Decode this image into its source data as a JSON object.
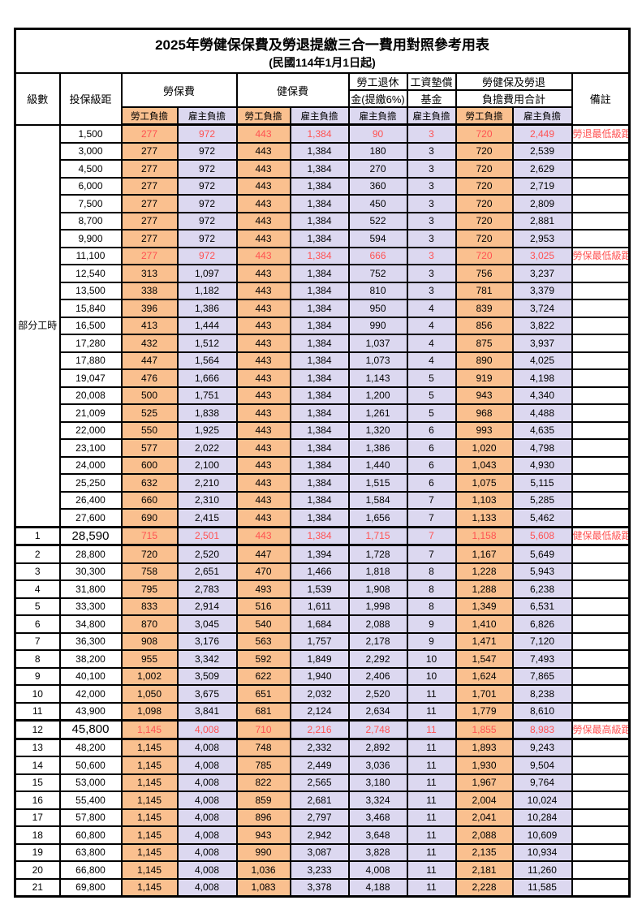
{
  "title": "2025年勞健保保費及勞退提繳三合一費用對照參考用表",
  "subtitle": "(民國114年1月1日起)",
  "colors": {
    "employee_bg": "#FAC08F",
    "employer_bg": "#DCD8F0",
    "highlight_red": "#FF5252",
    "border": "#000000"
  },
  "headers": {
    "level": "級數",
    "bracket": "投保級距",
    "labor_ins": "勞保費",
    "health_ins": "健保費",
    "pension_line1": "勞工退休",
    "pension_line2": "金(提繳6%)",
    "wage_fund_line1": "工資墊償",
    "wage_fund_line2": "基金",
    "total_line1": "勞健保及勞退",
    "total_line2": "負擔費用合計",
    "remark": "備註",
    "employee": "勞工負擔",
    "employer": "雇主負擔"
  },
  "group_label": "部分工時",
  "rows": [
    {
      "level": "",
      "bracket": "1,500",
      "labor_emp": "277",
      "labor_er": "972",
      "health_emp": "443",
      "health_er": "1,384",
      "pension": "90",
      "fund": "3",
      "total_emp": "720",
      "total_er": "2,449",
      "note": "勞退最低級距",
      "red": true,
      "big": false
    },
    {
      "level": "",
      "bracket": "3,000",
      "labor_emp": "277",
      "labor_er": "972",
      "health_emp": "443",
      "health_er": "1,384",
      "pension": "180",
      "fund": "3",
      "total_emp": "720",
      "total_er": "2,539",
      "note": "",
      "red": false,
      "big": false
    },
    {
      "level": "",
      "bracket": "4,500",
      "labor_emp": "277",
      "labor_er": "972",
      "health_emp": "443",
      "health_er": "1,384",
      "pension": "270",
      "fund": "3",
      "total_emp": "720",
      "total_er": "2,629",
      "note": "",
      "red": false,
      "big": false
    },
    {
      "level": "",
      "bracket": "6,000",
      "labor_emp": "277",
      "labor_er": "972",
      "health_emp": "443",
      "health_er": "1,384",
      "pension": "360",
      "fund": "3",
      "total_emp": "720",
      "total_er": "2,719",
      "note": "",
      "red": false,
      "big": false
    },
    {
      "level": "",
      "bracket": "7,500",
      "labor_emp": "277",
      "labor_er": "972",
      "health_emp": "443",
      "health_er": "1,384",
      "pension": "450",
      "fund": "3",
      "total_emp": "720",
      "total_er": "2,809",
      "note": "",
      "red": false,
      "big": false
    },
    {
      "level": "",
      "bracket": "8,700",
      "labor_emp": "277",
      "labor_er": "972",
      "health_emp": "443",
      "health_er": "1,384",
      "pension": "522",
      "fund": "3",
      "total_emp": "720",
      "total_er": "2,881",
      "note": "",
      "red": false,
      "big": false
    },
    {
      "level": "",
      "bracket": "9,900",
      "labor_emp": "277",
      "labor_er": "972",
      "health_emp": "443",
      "health_er": "1,384",
      "pension": "594",
      "fund": "3",
      "total_emp": "720",
      "total_er": "2,953",
      "note": "",
      "red": false,
      "big": false
    },
    {
      "level": "",
      "bracket": "11,100",
      "labor_emp": "277",
      "labor_er": "972",
      "health_emp": "443",
      "health_er": "1,384",
      "pension": "666",
      "fund": "3",
      "total_emp": "720",
      "total_er": "3,025",
      "note": "勞保最低級距",
      "red": true,
      "big": false
    },
    {
      "level": "",
      "bracket": "12,540",
      "labor_emp": "313",
      "labor_er": "1,097",
      "health_emp": "443",
      "health_er": "1,384",
      "pension": "752",
      "fund": "3",
      "total_emp": "756",
      "total_er": "3,237",
      "note": "",
      "red": false,
      "big": false
    },
    {
      "level": "",
      "bracket": "13,500",
      "labor_emp": "338",
      "labor_er": "1,182",
      "health_emp": "443",
      "health_er": "1,384",
      "pension": "810",
      "fund": "3",
      "total_emp": "781",
      "total_er": "3,379",
      "note": "",
      "red": false,
      "big": false
    },
    {
      "level": "",
      "bracket": "15,840",
      "labor_emp": "396",
      "labor_er": "1,386",
      "health_emp": "443",
      "health_er": "1,384",
      "pension": "950",
      "fund": "4",
      "total_emp": "839",
      "total_er": "3,724",
      "note": "",
      "red": false,
      "big": false
    },
    {
      "level": "",
      "bracket": "16,500",
      "labor_emp": "413",
      "labor_er": "1,444",
      "health_emp": "443",
      "health_er": "1,384",
      "pension": "990",
      "fund": "4",
      "total_emp": "856",
      "total_er": "3,822",
      "note": "",
      "red": false,
      "big": false
    },
    {
      "level": "",
      "bracket": "17,280",
      "labor_emp": "432",
      "labor_er": "1,512",
      "health_emp": "443",
      "health_er": "1,384",
      "pension": "1,037",
      "fund": "4",
      "total_emp": "875",
      "total_er": "3,937",
      "note": "",
      "red": false,
      "big": false
    },
    {
      "level": "",
      "bracket": "17,880",
      "labor_emp": "447",
      "labor_er": "1,564",
      "health_emp": "443",
      "health_er": "1,384",
      "pension": "1,073",
      "fund": "4",
      "total_emp": "890",
      "total_er": "4,025",
      "note": "",
      "red": false,
      "big": false
    },
    {
      "level": "",
      "bracket": "19,047",
      "labor_emp": "476",
      "labor_er": "1,666",
      "health_emp": "443",
      "health_er": "1,384",
      "pension": "1,143",
      "fund": "5",
      "total_emp": "919",
      "total_er": "4,198",
      "note": "",
      "red": false,
      "big": false
    },
    {
      "level": "",
      "bracket": "20,008",
      "labor_emp": "500",
      "labor_er": "1,751",
      "health_emp": "443",
      "health_er": "1,384",
      "pension": "1,200",
      "fund": "5",
      "total_emp": "943",
      "total_er": "4,340",
      "note": "",
      "red": false,
      "big": false
    },
    {
      "level": "",
      "bracket": "21,009",
      "labor_emp": "525",
      "labor_er": "1,838",
      "health_emp": "443",
      "health_er": "1,384",
      "pension": "1,261",
      "fund": "5",
      "total_emp": "968",
      "total_er": "4,488",
      "note": "",
      "red": false,
      "big": false
    },
    {
      "level": "",
      "bracket": "22,000",
      "labor_emp": "550",
      "labor_er": "1,925",
      "health_emp": "443",
      "health_er": "1,384",
      "pension": "1,320",
      "fund": "6",
      "total_emp": "993",
      "total_er": "4,635",
      "note": "",
      "red": false,
      "big": false
    },
    {
      "level": "",
      "bracket": "23,100",
      "labor_emp": "577",
      "labor_er": "2,022",
      "health_emp": "443",
      "health_er": "1,384",
      "pension": "1,386",
      "fund": "6",
      "total_emp": "1,020",
      "total_er": "4,798",
      "note": "",
      "red": false,
      "big": false
    },
    {
      "level": "",
      "bracket": "24,000",
      "labor_emp": "600",
      "labor_er": "2,100",
      "health_emp": "443",
      "health_er": "1,384",
      "pension": "1,440",
      "fund": "6",
      "total_emp": "1,043",
      "total_er": "4,930",
      "note": "",
      "red": false,
      "big": false
    },
    {
      "level": "",
      "bracket": "25,250",
      "labor_emp": "632",
      "labor_er": "2,210",
      "health_emp": "443",
      "health_er": "1,384",
      "pension": "1,515",
      "fund": "6",
      "total_emp": "1,075",
      "total_er": "5,115",
      "note": "",
      "red": false,
      "big": false
    },
    {
      "level": "",
      "bracket": "26,400",
      "labor_emp": "660",
      "labor_er": "2,310",
      "health_emp": "443",
      "health_er": "1,384",
      "pension": "1,584",
      "fund": "7",
      "total_emp": "1,103",
      "total_er": "5,285",
      "note": "",
      "red": false,
      "big": false
    },
    {
      "level": "",
      "bracket": "27,600",
      "labor_emp": "690",
      "labor_er": "2,415",
      "health_emp": "443",
      "health_er": "1,384",
      "pension": "1,656",
      "fund": "7",
      "total_emp": "1,133",
      "total_er": "5,462",
      "note": "",
      "red": false,
      "big": false
    },
    {
      "level": "1",
      "bracket": "28,590",
      "labor_emp": "715",
      "labor_er": "2,501",
      "health_emp": "443",
      "health_er": "1,384",
      "pension": "1,715",
      "fund": "7",
      "total_emp": "1,158",
      "total_er": "5,608",
      "note": "健保最低級距",
      "red": true,
      "big": true
    },
    {
      "level": "2",
      "bracket": "28,800",
      "labor_emp": "720",
      "labor_er": "2,520",
      "health_emp": "447",
      "health_er": "1,394",
      "pension": "1,728",
      "fund": "7",
      "total_emp": "1,167",
      "total_er": "5,649",
      "note": "",
      "red": false,
      "big": false
    },
    {
      "level": "3",
      "bracket": "30,300",
      "labor_emp": "758",
      "labor_er": "2,651",
      "health_emp": "470",
      "health_er": "1,466",
      "pension": "1,818",
      "fund": "8",
      "total_emp": "1,228",
      "total_er": "5,943",
      "note": "",
      "red": false,
      "big": false
    },
    {
      "level": "4",
      "bracket": "31,800",
      "labor_emp": "795",
      "labor_er": "2,783",
      "health_emp": "493",
      "health_er": "1,539",
      "pension": "1,908",
      "fund": "8",
      "total_emp": "1,288",
      "total_er": "6,238",
      "note": "",
      "red": false,
      "big": false
    },
    {
      "level": "5",
      "bracket": "33,300",
      "labor_emp": "833",
      "labor_er": "2,914",
      "health_emp": "516",
      "health_er": "1,611",
      "pension": "1,998",
      "fund": "8",
      "total_emp": "1,349",
      "total_er": "6,531",
      "note": "",
      "red": false,
      "big": false
    },
    {
      "level": "6",
      "bracket": "34,800",
      "labor_emp": "870",
      "labor_er": "3,045",
      "health_emp": "540",
      "health_er": "1,684",
      "pension": "2,088",
      "fund": "9",
      "total_emp": "1,410",
      "total_er": "6,826",
      "note": "",
      "red": false,
      "big": false
    },
    {
      "level": "7",
      "bracket": "36,300",
      "labor_emp": "908",
      "labor_er": "3,176",
      "health_emp": "563",
      "health_er": "1,757",
      "pension": "2,178",
      "fund": "9",
      "total_emp": "1,471",
      "total_er": "7,120",
      "note": "",
      "red": false,
      "big": false
    },
    {
      "level": "8",
      "bracket": "38,200",
      "labor_emp": "955",
      "labor_er": "3,342",
      "health_emp": "592",
      "health_er": "1,849",
      "pension": "2,292",
      "fund": "10",
      "total_emp": "1,547",
      "total_er": "7,493",
      "note": "",
      "red": false,
      "big": false
    },
    {
      "level": "9",
      "bracket": "40,100",
      "labor_emp": "1,002",
      "labor_er": "3,509",
      "health_emp": "622",
      "health_er": "1,940",
      "pension": "2,406",
      "fund": "10",
      "total_emp": "1,624",
      "total_er": "7,865",
      "note": "",
      "red": false,
      "big": false
    },
    {
      "level": "10",
      "bracket": "42,000",
      "labor_emp": "1,050",
      "labor_er": "3,675",
      "health_emp": "651",
      "health_er": "2,032",
      "pension": "2,520",
      "fund": "11",
      "total_emp": "1,701",
      "total_er": "8,238",
      "note": "",
      "red": false,
      "big": false
    },
    {
      "level": "11",
      "bracket": "43,900",
      "labor_emp": "1,098",
      "labor_er": "3,841",
      "health_emp": "681",
      "health_er": "2,124",
      "pension": "2,634",
      "fund": "11",
      "total_emp": "1,779",
      "total_er": "8,610",
      "note": "",
      "red": false,
      "big": false
    },
    {
      "level": "12",
      "bracket": "45,800",
      "labor_emp": "1,145",
      "labor_er": "4,008",
      "health_emp": "710",
      "health_er": "2,216",
      "pension": "2,748",
      "fund": "11",
      "total_emp": "1,855",
      "total_er": "8,983",
      "note": "勞保最高級距",
      "red": true,
      "big": true
    },
    {
      "level": "13",
      "bracket": "48,200",
      "labor_emp": "1,145",
      "labor_er": "4,008",
      "health_emp": "748",
      "health_er": "2,332",
      "pension": "2,892",
      "fund": "11",
      "total_emp": "1,893",
      "total_er": "9,243",
      "note": "",
      "red": false,
      "big": false
    },
    {
      "level": "14",
      "bracket": "50,600",
      "labor_emp": "1,145",
      "labor_er": "4,008",
      "health_emp": "785",
      "health_er": "2,449",
      "pension": "3,036",
      "fund": "11",
      "total_emp": "1,930",
      "total_er": "9,504",
      "note": "",
      "red": false,
      "big": false
    },
    {
      "level": "15",
      "bracket": "53,000",
      "labor_emp": "1,145",
      "labor_er": "4,008",
      "health_emp": "822",
      "health_er": "2,565",
      "pension": "3,180",
      "fund": "11",
      "total_emp": "1,967",
      "total_er": "9,764",
      "note": "",
      "red": false,
      "big": false
    },
    {
      "level": "16",
      "bracket": "55,400",
      "labor_emp": "1,145",
      "labor_er": "4,008",
      "health_emp": "859",
      "health_er": "2,681",
      "pension": "3,324",
      "fund": "11",
      "total_emp": "2,004",
      "total_er": "10,024",
      "note": "",
      "red": false,
      "big": false
    },
    {
      "level": "17",
      "bracket": "57,800",
      "labor_emp": "1,145",
      "labor_er": "4,008",
      "health_emp": "896",
      "health_er": "2,797",
      "pension": "3,468",
      "fund": "11",
      "total_emp": "2,041",
      "total_er": "10,284",
      "note": "",
      "red": false,
      "big": false
    },
    {
      "level": "18",
      "bracket": "60,800",
      "labor_emp": "1,145",
      "labor_er": "4,008",
      "health_emp": "943",
      "health_er": "2,942",
      "pension": "3,648",
      "fund": "11",
      "total_emp": "2,088",
      "total_er": "10,609",
      "note": "",
      "red": false,
      "big": false
    },
    {
      "level": "19",
      "bracket": "63,800",
      "labor_emp": "1,145",
      "labor_er": "4,008",
      "health_emp": "990",
      "health_er": "3,087",
      "pension": "3,828",
      "fund": "11",
      "total_emp": "2,135",
      "total_er": "10,934",
      "note": "",
      "red": false,
      "big": false
    },
    {
      "level": "20",
      "bracket": "66,800",
      "labor_emp": "1,145",
      "labor_er": "4,008",
      "health_emp": "1,036",
      "health_er": "3,233",
      "pension": "4,008",
      "fund": "11",
      "total_emp": "2,181",
      "total_er": "11,260",
      "note": "",
      "red": false,
      "big": false
    },
    {
      "level": "21",
      "bracket": "69,800",
      "labor_emp": "1,145",
      "labor_er": "4,008",
      "health_emp": "1,083",
      "health_er": "3,378",
      "pension": "4,188",
      "fund": "11",
      "total_emp": "2,228",
      "total_er": "11,585",
      "note": "",
      "red": false,
      "big": false
    }
  ]
}
